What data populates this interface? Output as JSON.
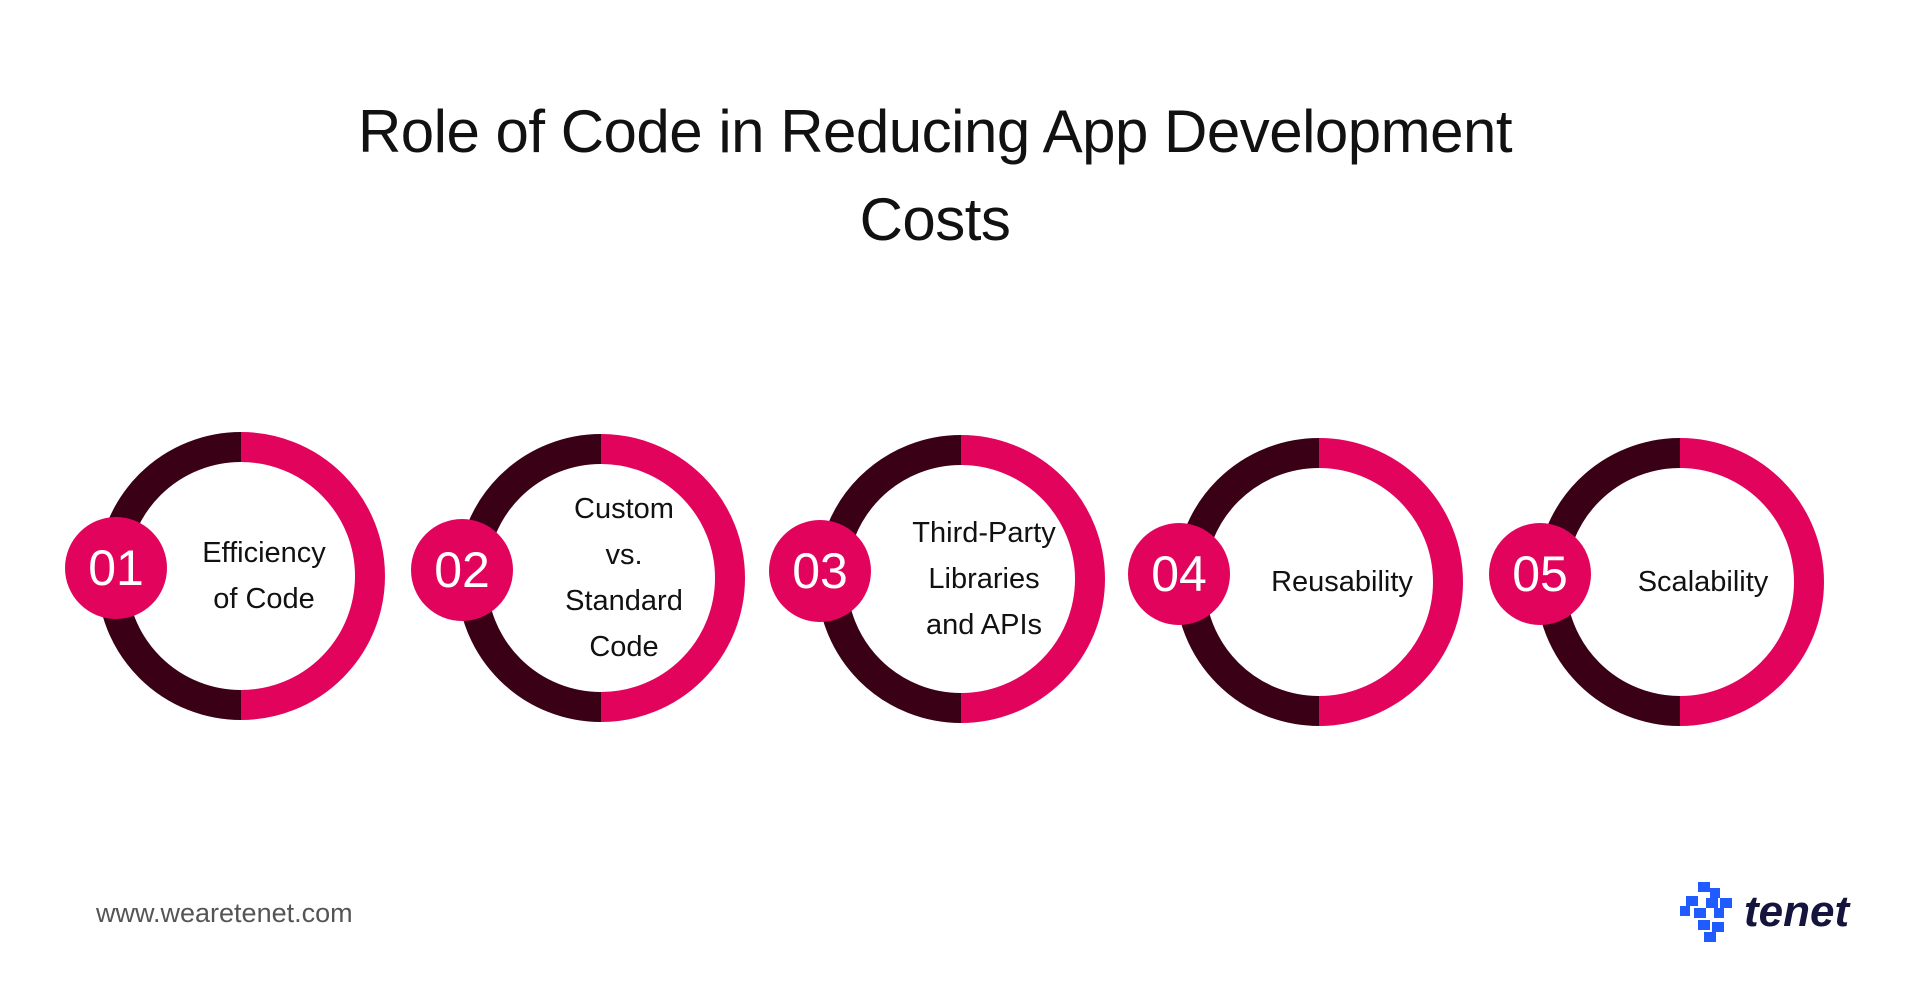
{
  "title": {
    "line1": "Role of Code in Reducing App Development",
    "line2": "Costs"
  },
  "colors": {
    "accent": "#E2045C",
    "dark": "#3A0016",
    "logo_blue": "#1F5BFF",
    "logo_text": "#14143C"
  },
  "steps": [
    {
      "number": "01",
      "label": "Efficiency\nof Code"
    },
    {
      "number": "02",
      "label": "Custom\nvs.\nStandard\nCode"
    },
    {
      "number": "03",
      "label": "Third-Party\nLibraries\nand APIs"
    },
    {
      "number": "04",
      "label": "Reusability"
    },
    {
      "number": "05",
      "label": "Scalability"
    }
  ],
  "footer": {
    "url": "www.wearetenet.com",
    "logo": "tenet"
  }
}
